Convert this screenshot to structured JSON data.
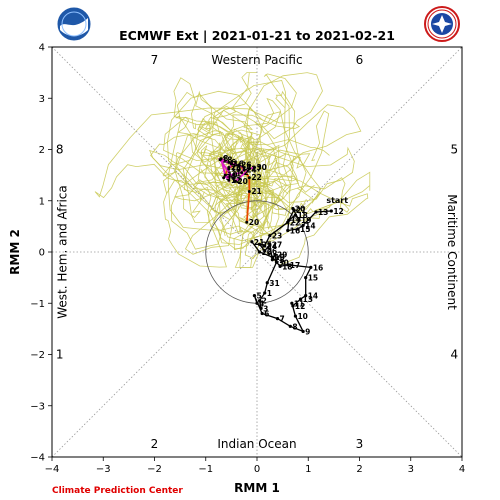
{
  "credit": "Climate Prediction Center",
  "colors": {
    "observed": "#000000",
    "ensemble": "#c8c850",
    "mean_early": "#e01cc8",
    "mean_late": "#e84800",
    "credit": "#e00000"
  },
  "chart_data": {
    "type": "line",
    "title": "ECMWF Ext | 2021-01-21 to 2021-02-21",
    "xlabel": "RMM 1",
    "ylabel": "RMM 2",
    "xlim": [
      -4,
      4
    ],
    "ylim": [
      -4,
      4
    ],
    "xticks": [
      "−4",
      "−3",
      "−2",
      "−1",
      "0",
      "1",
      "2",
      "3",
      "4"
    ],
    "yticks": [
      "−4",
      "−3",
      "−2",
      "−1",
      "0",
      "1",
      "2",
      "3",
      "4"
    ],
    "grid": "diagonal and axis dotted lines",
    "phases": [
      {
        "label": "1",
        "x": -3.85,
        "y": -2.0
      },
      {
        "label": "2",
        "x": -2.0,
        "y": -3.75
      },
      {
        "label": "3",
        "x": 2.0,
        "y": -3.75
      },
      {
        "label": "4",
        "x": 3.85,
        "y": -2.0
      },
      {
        "label": "5",
        "x": 3.85,
        "y": 2.0
      },
      {
        "label": "6",
        "x": 2.0,
        "y": 3.75
      },
      {
        "label": "7",
        "x": -2.0,
        "y": 3.75
      },
      {
        "label": "8",
        "x": -3.85,
        "y": 2.0
      }
    ],
    "regions": {
      "top": "Western Pacific",
      "bottom": "Indian Ocean",
      "left": "West. Hem. and Africa",
      "right": "Maritime Continent"
    },
    "start_label": "start",
    "observed": [
      {
        "x": 1.45,
        "y": 0.8,
        "label": "12"
      },
      {
        "x": 1.15,
        "y": 0.78,
        "label": "13"
      },
      {
        "x": 0.9,
        "y": 0.52,
        "label": "14"
      },
      {
        "x": 0.8,
        "y": 0.45,
        "label": "15"
      },
      {
        "x": 0.6,
        "y": 0.42,
        "label": "16"
      },
      {
        "x": 0.62,
        "y": 0.62,
        "label": "17"
      },
      {
        "x": 0.75,
        "y": 0.72,
        "label": "18"
      },
      {
        "x": 0.82,
        "y": 0.62,
        "label": "19"
      },
      {
        "x": 0.7,
        "y": 0.85,
        "label": "20"
      },
      {
        "x": 0.72,
        "y": 0.82,
        "label": "21"
      },
      {
        "x": 0.6,
        "y": 0.58,
        "label": "22"
      },
      {
        "x": 0.25,
        "y": 0.32,
        "label": "23"
      },
      {
        "x": 0.15,
        "y": 0.12,
        "label": "24"
      },
      {
        "x": 0.05,
        "y": 0.15,
        "label": "25"
      },
      {
        "x": 0.15,
        "y": 0.02,
        "label": "26"
      },
      {
        "x": 0.25,
        "y": 0.15,
        "label": "27"
      },
      {
        "x": 0.3,
        "y": -0.15,
        "label": "28"
      },
      {
        "x": 0.35,
        "y": -0.05,
        "label": "29"
      },
      {
        "x": 0.38,
        "y": -0.2,
        "label": "30"
      },
      {
        "x": 0.2,
        "y": -0.6,
        "label": "31"
      },
      {
        "x": 0.15,
        "y": -0.8,
        "label": "1"
      },
      {
        "x": 0.05,
        "y": -0.95,
        "label": "2"
      },
      {
        "x": 0.08,
        "y": -1.1,
        "label": "3"
      },
      {
        "x": 0.0,
        "y": -1.0,
        "label": "4"
      },
      {
        "x": -0.05,
        "y": -0.85,
        "label": "5"
      },
      {
        "x": 0.1,
        "y": -1.2,
        "label": "6"
      },
      {
        "x": 0.4,
        "y": -1.3,
        "label": "7"
      },
      {
        "x": 0.65,
        "y": -1.45,
        "label": "8"
      },
      {
        "x": 0.9,
        "y": -1.55,
        "label": "9"
      },
      {
        "x": 0.75,
        "y": -1.25,
        "label": "10"
      },
      {
        "x": 0.68,
        "y": -1.0,
        "label": "11"
      },
      {
        "x": 0.7,
        "y": -1.05,
        "label": "12"
      },
      {
        "x": 0.85,
        "y": -0.92,
        "label": "13"
      },
      {
        "x": 0.95,
        "y": -0.85,
        "label": "14"
      },
      {
        "x": 0.95,
        "y": -0.5,
        "label": "15"
      },
      {
        "x": 1.05,
        "y": -0.3,
        "label": "16"
      },
      {
        "x": 0.6,
        "y": -0.25,
        "label": "17"
      },
      {
        "x": 0.45,
        "y": -0.28,
        "label": "18"
      },
      {
        "x": 0.3,
        "y": -0.1,
        "label": "19"
      },
      {
        "x": 0.05,
        "y": 0.0,
        "label": "20"
      },
      {
        "x": -0.1,
        "y": 0.2,
        "label": "21"
      }
    ],
    "forecast_points": [
      {
        "x": -0.2,
        "y": 0.58,
        "label": "20"
      },
      {
        "x": -0.15,
        "y": 1.18,
        "label": "21"
      },
      {
        "x": -0.15,
        "y": 1.45,
        "label": "22"
      },
      {
        "x": -0.25,
        "y": 1.6,
        "label": "24"
      },
      {
        "x": -0.35,
        "y": 1.7,
        "label": "26"
      },
      {
        "x": -0.55,
        "y": 1.65,
        "label": "28"
      },
      {
        "x": -0.65,
        "y": 1.45,
        "label": "30"
      },
      {
        "x": -0.45,
        "y": 1.52,
        "label": "1"
      },
      {
        "x": -0.3,
        "y": 1.55,
        "label": "2"
      },
      {
        "x": -0.25,
        "y": 1.65,
        "label": "4"
      },
      {
        "x": -0.55,
        "y": 1.75,
        "label": "6"
      },
      {
        "x": -0.7,
        "y": 1.82,
        "label": "8"
      },
      {
        "x": -0.62,
        "y": 1.5,
        "label": "10"
      },
      {
        "x": -0.55,
        "y": 1.4,
        "label": "12"
      },
      {
        "x": -0.55,
        "y": 1.62,
        "label": "14"
      },
      {
        "x": -0.5,
        "y": 1.72,
        "label": "16"
      },
      {
        "x": -0.72,
        "y": 1.8,
        "label": "18"
      },
      {
        "x": -0.42,
        "y": 1.38,
        "label": "20"
      },
      {
        "x": -0.15,
        "y": 1.62,
        "label": "27"
      },
      {
        "x": -0.05,
        "y": 1.65,
        "label": "30"
      }
    ]
  }
}
